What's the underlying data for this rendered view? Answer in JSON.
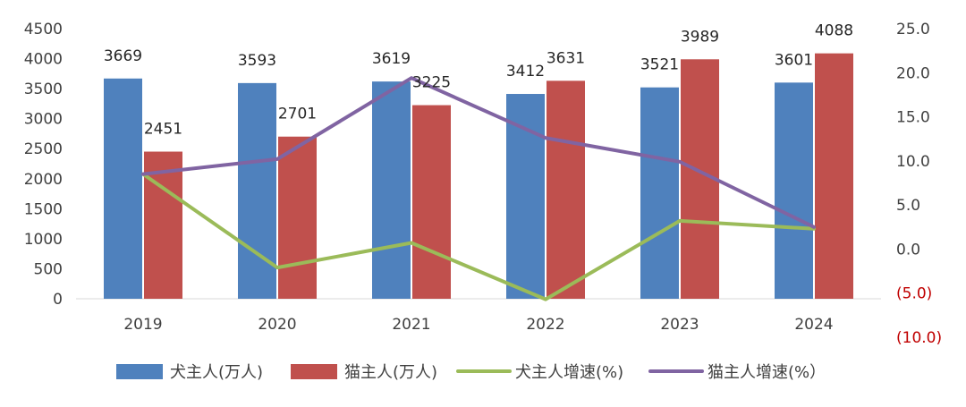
{
  "chart_data": {
    "type": "bar",
    "categories": [
      "2019",
      "2020",
      "2021",
      "2022",
      "2023",
      "2024"
    ],
    "series": [
      {
        "name": "犬主人(万人)",
        "kind": "bar",
        "axis": "left",
        "color": "#4f81bd",
        "values": [
          3669,
          3593,
          3619,
          3412,
          3521,
          3601
        ],
        "labels": [
          "3669",
          "3593",
          "3619",
          "3412",
          "3521",
          "3601"
        ]
      },
      {
        "name": "猫主人(万人)",
        "kind": "bar",
        "axis": "left",
        "color": "#c0504d",
        "values": [
          2451,
          2701,
          3225,
          3631,
          3989,
          4088
        ],
        "labels": [
          "2451",
          "2701",
          "3225",
          "3631",
          "3989",
          "4088"
        ]
      },
      {
        "name": "犬主人增速(%)",
        "kind": "line",
        "axis": "right",
        "color": "#9bbb59",
        "values": [
          8.5,
          -2.1,
          0.7,
          -5.7,
          3.2,
          2.3
        ]
      },
      {
        "name": "猫主人增速(%）",
        "kind": "line",
        "axis": "right",
        "color": "#8064a2",
        "values": [
          8.5,
          10.2,
          19.4,
          12.6,
          9.9,
          2.5
        ]
      }
    ],
    "y_left": {
      "min": 0,
      "max": 4500,
      "step": 500,
      "ticks": [
        "0",
        "500",
        "1000",
        "1500",
        "2000",
        "2500",
        "3000",
        "3500",
        "4000",
        "4500"
      ]
    },
    "y_right": {
      "min": -10,
      "max": 25,
      "step": 5,
      "ticks": [
        "(10.0)",
        "(5.0)",
        "0.0",
        "5.0",
        "10.0",
        "15.0",
        "20.0",
        "25.0"
      ],
      "negative_color": "#c00000"
    },
    "grid": false,
    "legend_position": "bottom"
  }
}
